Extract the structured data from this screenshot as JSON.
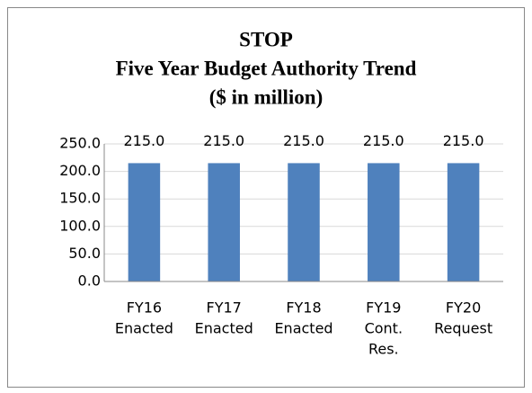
{
  "chart_data": {
    "type": "bar",
    "title": [
      "STOP",
      "Five Year Budget Authority Trend",
      "($ in million)"
    ],
    "categories": [
      [
        "FY16",
        "Enacted"
      ],
      [
        "FY17",
        "Enacted"
      ],
      [
        "FY18",
        "Enacted"
      ],
      [
        "FY19",
        "Cont.",
        "Res."
      ],
      [
        "FY20",
        "Request"
      ]
    ],
    "values": [
      215,
      215,
      215,
      215,
      215
    ],
    "value_labels": [
      "215.0",
      "215.0",
      "215.0",
      "215.0",
      "215.0"
    ],
    "color": "#4f81bd",
    "ylim": [
      0,
      250
    ],
    "yticks": [
      {
        "value": 0,
        "label": "0.0"
      },
      {
        "value": 50,
        "label": "50.0"
      },
      {
        "value": 100,
        "label": "100.0"
      },
      {
        "value": 150,
        "label": "150.0"
      },
      {
        "value": 200,
        "label": "200.0"
      },
      {
        "value": 250,
        "label": "250.0"
      }
    ],
    "grid": true
  }
}
